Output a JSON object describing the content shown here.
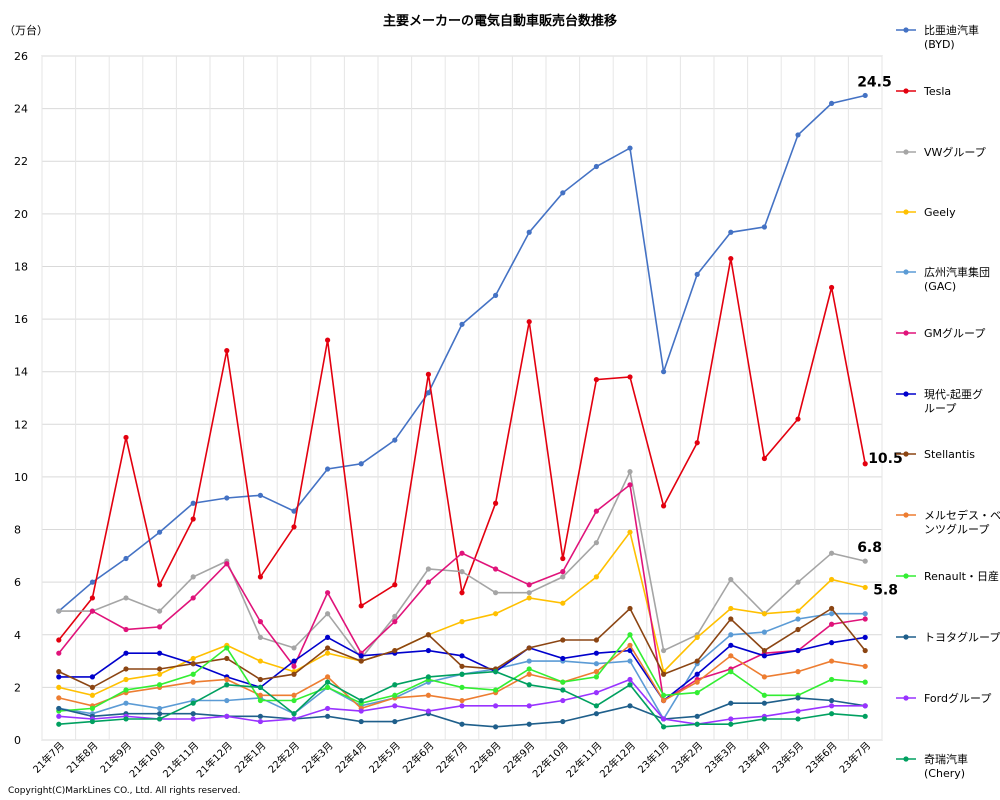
{
  "chart_data": {
    "type": "line",
    "title": "主要メーカーの電気自動車販売台数推移",
    "ylabel": "（万台）",
    "ylim": [
      0,
      26
    ],
    "yticks": [
      0,
      2,
      4,
      6,
      8,
      10,
      12,
      14,
      16,
      18,
      20,
      22,
      24,
      26
    ],
    "grid": true,
    "legend_position": "right",
    "categories": [
      "21年7月",
      "21年8月",
      "21年9月",
      "21年10月",
      "21年11月",
      "21年12月",
      "22年1月",
      "22年2月",
      "22年3月",
      "22年4月",
      "22年5月",
      "22年6月",
      "22年7月",
      "22年8月",
      "22年9月",
      "22年10月",
      "22年11月",
      "22年12月",
      "23年1月",
      "23年2月",
      "23年3月",
      "23年4月",
      "23年5月",
      "23年6月",
      "23年7月"
    ],
    "series": [
      {
        "name": "比亜迪汽車(BYD)",
        "color": "#4472C4",
        "values": [
          4.9,
          6.0,
          6.9,
          7.9,
          9.0,
          9.2,
          9.3,
          8.7,
          10.3,
          10.5,
          11.4,
          13.2,
          15.8,
          16.9,
          19.3,
          20.8,
          21.8,
          22.5,
          14.0,
          17.7,
          19.3,
          19.5,
          23.0,
          24.2,
          24.5
        ]
      },
      {
        "name": "Tesla",
        "color": "#E3000F",
        "values": [
          3.8,
          5.4,
          11.5,
          5.9,
          8.4,
          14.8,
          6.2,
          8.1,
          15.2,
          5.1,
          5.9,
          13.9,
          5.6,
          9.0,
          15.9,
          6.9,
          13.7,
          13.8,
          8.9,
          11.3,
          18.3,
          10.7,
          12.2,
          17.2,
          10.5
        ]
      },
      {
        "name": "VWグループ",
        "color": "#A5A5A5",
        "values": [
          4.9,
          4.9,
          5.4,
          4.9,
          6.2,
          6.8,
          3.9,
          3.5,
          4.8,
          3.1,
          4.7,
          6.5,
          6.4,
          5.6,
          5.6,
          6.2,
          7.5,
          10.2,
          3.4,
          4.0,
          6.1,
          4.8,
          6.0,
          7.1,
          6.8
        ]
      },
      {
        "name": "Geely",
        "color": "#FFC000",
        "values": [
          2.0,
          1.7,
          2.3,
          2.5,
          3.1,
          3.6,
          3.0,
          2.6,
          3.3,
          3.0,
          3.4,
          4.0,
          4.5,
          4.8,
          5.4,
          5.2,
          6.2,
          7.9,
          2.6,
          3.9,
          5.0,
          4.8,
          4.9,
          6.1,
          5.8
        ]
      },
      {
        "name": "広州汽車集団(GAC)",
        "color": "#5B9BD5",
        "values": [
          1.2,
          1.0,
          1.4,
          1.2,
          1.5,
          1.5,
          1.6,
          1.0,
          2.0,
          1.3,
          1.6,
          2.2,
          2.5,
          2.7,
          3.0,
          3.0,
          2.9,
          3.0,
          0.8,
          2.9,
          4.0,
          4.1,
          4.6,
          4.8,
          4.8
        ]
      },
      {
        "name": "GMグループ",
        "color": "#E0137A",
        "values": [
          3.3,
          4.9,
          4.2,
          4.3,
          5.4,
          6.7,
          4.5,
          2.8,
          5.6,
          3.3,
          4.5,
          6.0,
          7.1,
          6.5,
          5.9,
          6.4,
          8.7,
          9.7,
          1.5,
          2.3,
          2.7,
          3.3,
          3.4,
          4.4,
          4.6
        ]
      },
      {
        "name": "現代-起亜グループ",
        "color": "#0000CC",
        "values": [
          2.4,
          2.4,
          3.3,
          3.3,
          2.9,
          2.4,
          2.0,
          3.0,
          3.9,
          3.2,
          3.3,
          3.4,
          3.2,
          2.6,
          3.5,
          3.1,
          3.3,
          3.4,
          1.5,
          2.5,
          3.6,
          3.2,
          3.4,
          3.7,
          3.9
        ]
      },
      {
        "name": "Stellantis",
        "color": "#8B4513",
        "values": [
          2.6,
          2.0,
          2.7,
          2.7,
          2.9,
          3.1,
          2.3,
          2.5,
          3.5,
          3.0,
          3.4,
          4.0,
          2.8,
          2.7,
          3.5,
          3.8,
          3.8,
          5.0,
          2.5,
          3.0,
          4.6,
          3.4,
          4.2,
          5.0,
          3.4
        ]
      },
      {
        "name": "メルセデス・ベンツグループ",
        "color": "#ED7D31",
        "values": [
          1.6,
          1.3,
          1.8,
          2.0,
          2.2,
          2.3,
          1.7,
          1.7,
          2.4,
          1.2,
          1.6,
          1.7,
          1.5,
          1.8,
          2.5,
          2.2,
          2.6,
          3.6,
          1.5,
          2.2,
          3.2,
          2.4,
          2.6,
          3.0,
          2.8
        ]
      },
      {
        "name": "Renault・日産",
        "color": "#33EE33",
        "values": [
          1.1,
          1.2,
          1.9,
          2.1,
          2.5,
          3.5,
          1.5,
          1.5,
          2.0,
          1.4,
          1.7,
          2.3,
          2.0,
          1.9,
          2.7,
          2.2,
          2.4,
          4.0,
          1.7,
          1.8,
          2.6,
          1.7,
          1.7,
          2.3,
          2.2
        ]
      },
      {
        "name": "トヨタグループ",
        "color": "#1F5F8B",
        "values": [
          1.2,
          0.9,
          1.0,
          1.0,
          1.0,
          0.9,
          0.9,
          0.8,
          0.9,
          0.7,
          0.7,
          1.0,
          0.6,
          0.5,
          0.6,
          0.7,
          1.0,
          1.3,
          0.8,
          0.9,
          1.4,
          1.4,
          1.6,
          1.5,
          1.3
        ]
      },
      {
        "name": "Fordグループ",
        "color": "#9933FF",
        "values": [
          0.9,
          0.8,
          0.9,
          0.8,
          0.8,
          0.9,
          0.7,
          0.8,
          1.2,
          1.1,
          1.3,
          1.1,
          1.3,
          1.3,
          1.3,
          1.5,
          1.8,
          2.3,
          0.8,
          0.6,
          0.8,
          0.9,
          1.1,
          1.3,
          1.3
        ]
      },
      {
        "name": "奇瑞汽車(Chery)",
        "color": "#00A060",
        "values": [
          0.6,
          0.7,
          0.8,
          0.8,
          1.4,
          2.1,
          2.0,
          1.0,
          2.2,
          1.5,
          2.1,
          2.4,
          2.5,
          2.6,
          2.1,
          1.9,
          1.3,
          2.1,
          0.5,
          0.6,
          0.6,
          0.8,
          0.8,
          1.0,
          0.9
        ]
      }
    ],
    "annotations": [
      {
        "text": "24.5",
        "series": 0
      },
      {
        "text": "10.5",
        "series": 1
      },
      {
        "text": "6.8",
        "series": 2
      },
      {
        "text": "5.8",
        "series": 3
      }
    ]
  },
  "legend": [
    {
      "lines": [
        "比亜迪汽車",
        "(BYD)"
      ]
    },
    {
      "lines": [
        "Tesla"
      ]
    },
    {
      "lines": [
        "VWグループ"
      ]
    },
    {
      "lines": [
        "Geely"
      ]
    },
    {
      "lines": [
        "広州汽車集団",
        "(GAC)"
      ]
    },
    {
      "lines": [
        "GMグループ"
      ]
    },
    {
      "lines": [
        "現代-起亜グ",
        "ループ"
      ]
    },
    {
      "lines": [
        "Stellantis"
      ]
    },
    {
      "lines": [
        "メルセデス・ベ",
        "ンツグループ"
      ]
    },
    {
      "lines": [
        "Renault・日産"
      ]
    },
    {
      "lines": [
        "トヨタグループ"
      ]
    },
    {
      "lines": [
        "Fordグループ"
      ]
    },
    {
      "lines": [
        "奇瑞汽車",
        "(Chery)"
      ]
    }
  ],
  "copyright": "Copyright(C)MarkLines CO., Ltd. All rights reserved."
}
